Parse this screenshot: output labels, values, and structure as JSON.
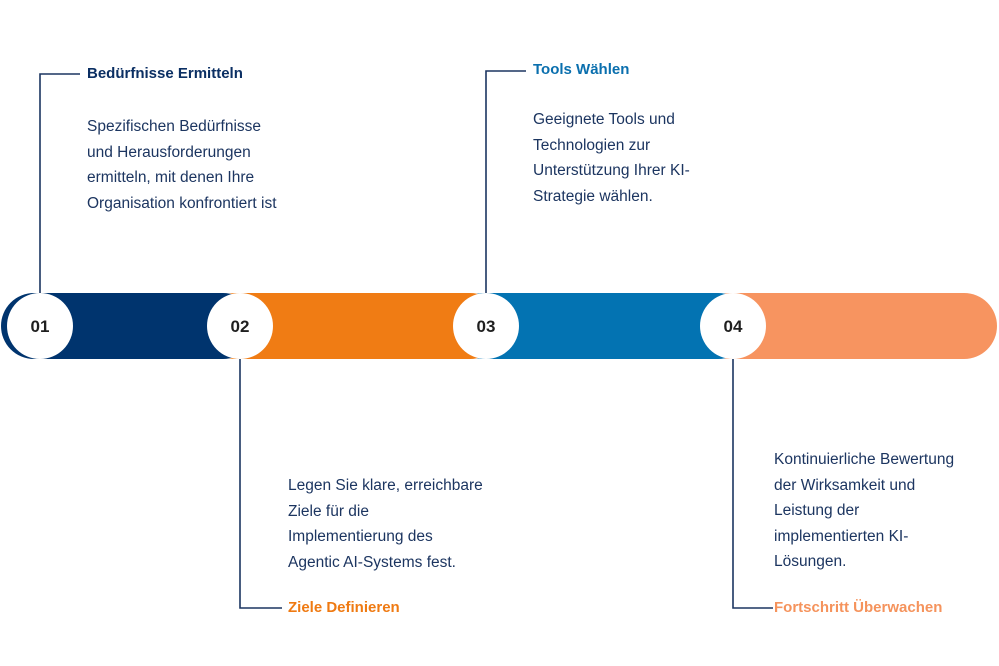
{
  "steps": [
    {
      "number": "01",
      "title": "Bedürfnisse Ermitteln",
      "description": [
        "Spezifischen Bedürfnisse",
        "und Herausforderungen",
        "ermitteln, mit denen Ihre",
        "Organisation konfrontiert ist"
      ],
      "color": "#00346e",
      "title_color": "#0b2f63"
    },
    {
      "number": "02",
      "title": "Ziele Definieren",
      "description": [
        "Legen Sie klare, erreichbare",
        "Ziele für die",
        "Implementierung des",
        "Agentic AI-Systems fest."
      ],
      "color": "#f07c14",
      "title_color": "#ef7a12"
    },
    {
      "number": "03",
      "title": "Tools Wählen",
      "description": [
        "Geeignete Tools und",
        "Technologien zur",
        "Unterstützung Ihrer KI-",
        "Strategie wählen."
      ],
      "color": "#0373b2",
      "title_color": "#0a6fae"
    },
    {
      "number": "04",
      "title": "Fortschritt Überwachen",
      "description": [
        "Kontinuierliche Bewertung",
        "der Wirksamkeit und",
        "Leistung der",
        "implementierten KI-",
        "Lösungen."
      ],
      "color": "#f79460",
      "title_color": "#f5935c"
    }
  ],
  "connector_color": "#1c3560"
}
